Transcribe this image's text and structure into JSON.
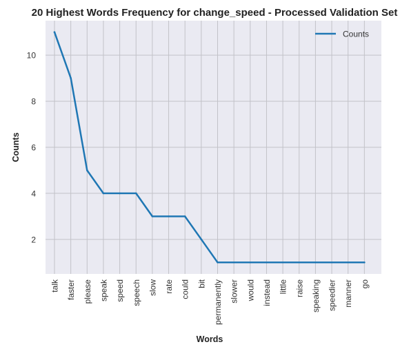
{
  "chart_data": {
    "type": "line",
    "title": "20 Highest Words Frequency for change_speed - Processed Validation Set",
    "xlabel": "Words",
    "ylabel": "Counts",
    "categories": [
      "talk",
      "faster",
      "please",
      "speak",
      "speed",
      "speech",
      "slow",
      "rate",
      "could",
      "bit",
      "permanently",
      "slower",
      "would",
      "instead",
      "little",
      "raise",
      "speaking",
      "speedier",
      "manner",
      "go"
    ],
    "series": [
      {
        "name": "Counts",
        "values": [
          11,
          9,
          5,
          4,
          4,
          4,
          3,
          3,
          3,
          2,
          1,
          1,
          1,
          1,
          1,
          1,
          1,
          1,
          1,
          1
        ],
        "color": "#1f77b4"
      }
    ],
    "ylim": [
      0.5,
      11.5
    ],
    "yticks": [
      2,
      4,
      6,
      8,
      10
    ],
    "grid": true,
    "legend_position": "top-right",
    "background": "#eaeaf2"
  }
}
